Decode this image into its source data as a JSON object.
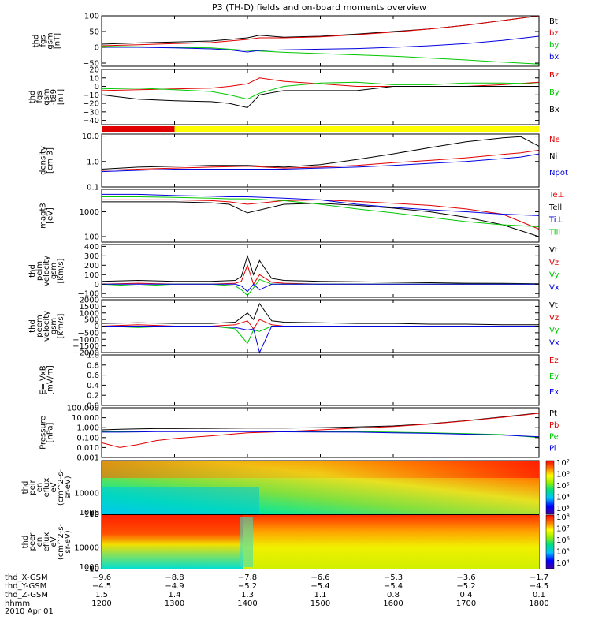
{
  "title": "P3 (TH-D) fields and on-board moments overview",
  "date_label": "2010 Apr 01",
  "ephemeris": {
    "row_labels": [
      "thd_X-GSM",
      "thd_Y-GSM",
      "thd_Z-GSM",
      "hhmm"
    ],
    "times": [
      "1200",
      "1300",
      "1400",
      "1500",
      "1600",
      "1700",
      "1800"
    ],
    "x_gsm": [
      "-9.6",
      "-8.8",
      "-7.8",
      "-6.6",
      "-5.3",
      "-3.6",
      "-1.7"
    ],
    "y_gsm": [
      "-4.5",
      "-4.9",
      "-5.2",
      "-5.4",
      "-5.4",
      "-5.2",
      "-4.5"
    ],
    "z_gsm": [
      "1.5",
      "1.4",
      "1.3",
      "1.1",
      "0.8",
      "0.4",
      "0.1"
    ]
  },
  "colors": {
    "black": "#000000",
    "red": "#e00000",
    "green": "#00c800",
    "blue": "#0000e0",
    "yellow": "#ffff00"
  },
  "chart_data": [
    {
      "type": "line",
      "id": "fgs_gsm",
      "ylabel": [
        "thd",
        "fgs",
        "gsm",
        "[nT]"
      ],
      "yticks": [
        "100",
        "50",
        "0",
        "−50"
      ],
      "ylim": [
        -60,
        100
      ],
      "x": [
        1200,
        1230,
        1300,
        1330,
        1345,
        1400,
        1410,
        1430,
        1500,
        1530,
        1600,
        1630,
        1700,
        1730,
        1800
      ],
      "series": [
        {
          "name": "Bt",
          "color": "black",
          "values": [
            10,
            14,
            17,
            20,
            25,
            30,
            38,
            32,
            35,
            42,
            50,
            58,
            70,
            85,
            105
          ]
        },
        {
          "name": "bz",
          "color": "red",
          "values": [
            5,
            8,
            12,
            15,
            20,
            25,
            30,
            30,
            33,
            40,
            48,
            58,
            70,
            85,
            105
          ]
        },
        {
          "name": "by",
          "color": "green",
          "values": [
            3,
            2,
            0,
            -2,
            -6,
            -10,
            -12,
            -16,
            -20,
            -24,
            -28,
            -34,
            -40,
            -47,
            -53
          ]
        },
        {
          "name": "bx",
          "color": "blue",
          "values": [
            0,
            0,
            -2,
            -5,
            -8,
            -15,
            -10,
            -8,
            -6,
            -4,
            0,
            5,
            12,
            22,
            35
          ]
        }
      ]
    },
    {
      "type": "line",
      "id": "fgs_dsl",
      "ylabel": [
        "thd",
        "fgs",
        "gsm",
        "-t89",
        "[nT]"
      ],
      "yticks": [
        "20",
        "10",
        "0",
        "−10",
        "−20",
        "−30",
        "−40"
      ],
      "ylim": [
        -45,
        20
      ],
      "x": [
        1200,
        1230,
        1300,
        1330,
        1345,
        1400,
        1410,
        1430,
        1500,
        1530,
        1600,
        1630,
        1700,
        1730,
        1800
      ],
      "series": [
        {
          "name": "Bz",
          "color": "red",
          "values": [
            -5,
            -4,
            -3,
            -2,
            0,
            3,
            10,
            6,
            3,
            0,
            0,
            0,
            0,
            2,
            5
          ]
        },
        {
          "name": "By",
          "color": "green",
          "values": [
            -3,
            -2,
            -4,
            -6,
            -10,
            -15,
            -8,
            0,
            4,
            5,
            2,
            2,
            4,
            4,
            3
          ]
        },
        {
          "name": "Bx",
          "color": "black",
          "values": [
            -10,
            -15,
            -17,
            -18,
            -20,
            -25,
            -10,
            -5,
            -5,
            -5,
            0,
            0,
            0,
            0,
            0
          ]
        }
      ]
    },
    {
      "type": "bar",
      "id": "mode_bar",
      "segments": [
        {
          "from": 1200,
          "to": 1300,
          "color": "red"
        },
        {
          "from": 1300,
          "to": 1800,
          "color": "yellow"
        }
      ]
    },
    {
      "type": "line",
      "id": "density",
      "scale": "log",
      "ylabel": [
        "density",
        "[cm-3]"
      ],
      "yticks": [
        "10.0",
        "1.0",
        "0.1"
      ],
      "ylim": [
        0.1,
        12
      ],
      "x": [
        1200,
        1230,
        1300,
        1330,
        1400,
        1430,
        1500,
        1530,
        1600,
        1630,
        1700,
        1730,
        1745,
        1800
      ],
      "series": [
        {
          "name": "Ne",
          "color": "red",
          "values": [
            0.45,
            0.5,
            0.55,
            0.6,
            0.65,
            0.55,
            0.6,
            0.7,
            0.9,
            1.1,
            1.4,
            1.9,
            2.2,
            2.8
          ]
        },
        {
          "name": "Ni",
          "color": "black",
          "values": [
            0.5,
            0.6,
            0.65,
            0.7,
            0.7,
            0.6,
            0.75,
            1.2,
            2.0,
            3.5,
            6.0,
            8.5,
            9.5,
            4.0
          ]
        },
        {
          "name": "Npot",
          "color": "blue",
          "values": [
            0.4,
            0.45,
            0.5,
            0.5,
            0.5,
            0.5,
            0.55,
            0.6,
            0.7,
            0.85,
            1.0,
            1.3,
            1.5,
            2.0
          ]
        }
      ]
    },
    {
      "type": "line",
      "id": "temperature",
      "scale": "log",
      "ylabel": [
        "magt3",
        "[eV]"
      ],
      "yticks": [
        "1000",
        "100"
      ],
      "ylim": [
        60,
        8000
      ],
      "x": [
        1200,
        1230,
        1300,
        1330,
        1345,
        1400,
        1430,
        1500,
        1530,
        1600,
        1630,
        1700,
        1730,
        1800
      ],
      "series": [
        {
          "name": "Te⊥",
          "color": "red",
          "values": [
            3000,
            3000,
            3000,
            2800,
            2500,
            2000,
            2800,
            3000,
            2600,
            2200,
            1800,
            1300,
            800,
            200
          ]
        },
        {
          "name": "Tell",
          "color": "black",
          "values": [
            2500,
            2500,
            2500,
            2300,
            2000,
            900,
            2000,
            2200,
            1800,
            1400,
            1000,
            600,
            300,
            100
          ]
        },
        {
          "name": "Ti⊥",
          "color": "blue",
          "values": [
            5000,
            5000,
            4500,
            4200,
            4000,
            4000,
            3500,
            3000,
            2000,
            1500,
            1200,
            1000,
            800,
            700
          ]
        },
        {
          "name": "Till",
          "color": "green",
          "values": [
            4000,
            4000,
            3800,
            3500,
            3300,
            3300,
            2800,
            2000,
            1300,
            900,
            600,
            400,
            300,
            250
          ]
        }
      ]
    },
    {
      "type": "line",
      "id": "peim_velocity",
      "ylabel": [
        "thd",
        "peim",
        "velocity",
        "gsm",
        "[km/s]"
      ],
      "yticks": [
        "400",
        "300",
        "200",
        "100",
        "0",
        "−100"
      ],
      "ylim": [
        -140,
        420
      ],
      "x": [
        1200,
        1230,
        1300,
        1330,
        1350,
        1355,
        1400,
        1405,
        1410,
        1420,
        1430,
        1500,
        1530,
        1600,
        1630,
        1700,
        1730,
        1800
      ],
      "series": [
        {
          "name": "Vt",
          "color": "black",
          "values": [
            30,
            40,
            30,
            30,
            40,
            80,
            300,
            100,
            250,
            60,
            40,
            30,
            25,
            20,
            15,
            10,
            8,
            5
          ]
        },
        {
          "name": "Vz",
          "color": "red",
          "values": [
            0,
            10,
            0,
            0,
            10,
            30,
            200,
            0,
            100,
            20,
            10,
            0,
            0,
            0,
            0,
            0,
            0,
            0
          ]
        },
        {
          "name": "Vy",
          "color": "green",
          "values": [
            0,
            -20,
            0,
            0,
            -20,
            -60,
            -120,
            -40,
            50,
            0,
            0,
            0,
            0,
            0,
            0,
            0,
            0,
            0
          ]
        },
        {
          "name": "Vx",
          "color": "blue",
          "values": [
            0,
            0,
            0,
            0,
            0,
            -20,
            -80,
            0,
            -60,
            0,
            0,
            0,
            0,
            0,
            0,
            0,
            0,
            0
          ]
        }
      ]
    },
    {
      "type": "line",
      "id": "peem_velocity",
      "ylabel": [
        "thd",
        "peem",
        "velocity",
        "gsm",
        "[km/s]"
      ],
      "yticks": [
        "2000",
        "1500",
        "1000",
        "500",
        "0",
        "−500",
        "−1000",
        "−1500",
        "−2000"
      ],
      "ylim": [
        -2000,
        2000
      ],
      "x": [
        1200,
        1230,
        1300,
        1330,
        1350,
        1400,
        1405,
        1410,
        1420,
        1430,
        1500,
        1530,
        1600,
        1630,
        1700,
        1730,
        1800
      ],
      "series": [
        {
          "name": "Vt",
          "color": "black",
          "values": [
            200,
            250,
            200,
            200,
            300,
            1000,
            500,
            1700,
            400,
            300,
            250,
            200,
            200,
            150,
            150,
            100,
            100
          ]
        },
        {
          "name": "Vz",
          "color": "red",
          "values": [
            0,
            100,
            0,
            0,
            100,
            400,
            -200,
            500,
            100,
            0,
            0,
            0,
            0,
            0,
            0,
            0,
            0
          ]
        },
        {
          "name": "Vy",
          "color": "green",
          "values": [
            0,
            -100,
            0,
            0,
            -200,
            -1300,
            -300,
            -400,
            0,
            0,
            0,
            0,
            0,
            0,
            0,
            0,
            0
          ]
        },
        {
          "name": "Vx",
          "color": "blue",
          "values": [
            0,
            0,
            0,
            0,
            -100,
            -300,
            -200,
            -2000,
            0,
            0,
            0,
            0,
            0,
            0,
            0,
            0,
            0
          ]
        }
      ]
    },
    {
      "type": "line",
      "id": "efield",
      "ylabel": [
        "E=-VxB",
        "[mV/m]"
      ],
      "yticks": [
        "1.0",
        "0.8",
        "0.6",
        "0.4",
        "0.2",
        "0.0"
      ],
      "ylim": [
        0,
        1
      ],
      "x": [],
      "series": [
        {
          "name": "Ez",
          "color": "red",
          "values": []
        },
        {
          "name": "Ey",
          "color": "green",
          "values": []
        },
        {
          "name": "Ex",
          "color": "blue",
          "values": []
        }
      ]
    },
    {
      "type": "line",
      "id": "pressure",
      "scale": "log",
      "ylabel": [
        "Pressure",
        "[nPa]"
      ],
      "yticks": [
        "100.000",
        "10.000",
        "1.000",
        "0.100",
        "0.010",
        "0.001"
      ],
      "ylim": [
        0.001,
        100
      ],
      "x": [
        1200,
        1215,
        1230,
        1245,
        1300,
        1330,
        1400,
        1430,
        1500,
        1530,
        1600,
        1630,
        1700,
        1730,
        1800
      ],
      "series": [
        {
          "name": "Pt",
          "color": "black",
          "values": [
            0.6,
            0.7,
            0.75,
            0.8,
            0.8,
            0.85,
            0.9,
            0.9,
            1.0,
            1.2,
            1.5,
            2.5,
            5,
            12,
            30
          ]
        },
        {
          "name": "Pb",
          "color": "red",
          "values": [
            0.03,
            0.01,
            0.02,
            0.05,
            0.08,
            0.15,
            0.3,
            0.4,
            0.6,
            0.9,
            1.3,
            2.3,
            4.8,
            11,
            28
          ]
        },
        {
          "name": "Pe",
          "color": "green",
          "values": [
            0.4,
            0.4,
            0.42,
            0.45,
            0.45,
            0.45,
            0.45,
            0.42,
            0.4,
            0.4,
            0.35,
            0.3,
            0.25,
            0.2,
            0.1
          ]
        },
        {
          "name": "Pi",
          "color": "blue",
          "values": [
            0.35,
            0.35,
            0.37,
            0.4,
            0.4,
            0.4,
            0.4,
            0.38,
            0.36,
            0.35,
            0.3,
            0.27,
            0.22,
            0.18,
            0.12
          ]
        }
      ]
    },
    {
      "type": "heatmap",
      "id": "peir_eflux",
      "ylabel": [
        "thd",
        "peir",
        "en",
        "eflux",
        "eV",
        "(cm^2-s-",
        "sr-eV)"
      ],
      "yticks": [
        "10000",
        "1000",
        "100",
        "10"
      ],
      "ylim": [
        7,
        25000
      ],
      "colorbar_ticks": [
        "10⁷",
        "10⁶",
        "10⁵",
        "10⁴",
        "10³"
      ]
    },
    {
      "type": "heatmap",
      "id": "peer_eflux",
      "ylabel": [
        "thd",
        "peer",
        "en",
        "eflux",
        "eV",
        "(cm^2-s-",
        "sr-eV)"
      ],
      "yticks": [
        "10000",
        "1000",
        "100",
        "10"
      ],
      "ylim": [
        7,
        25000
      ],
      "colorbar_ticks": [
        "10⁸",
        "10⁷",
        "10⁶",
        "10⁵",
        "10⁴"
      ]
    }
  ]
}
